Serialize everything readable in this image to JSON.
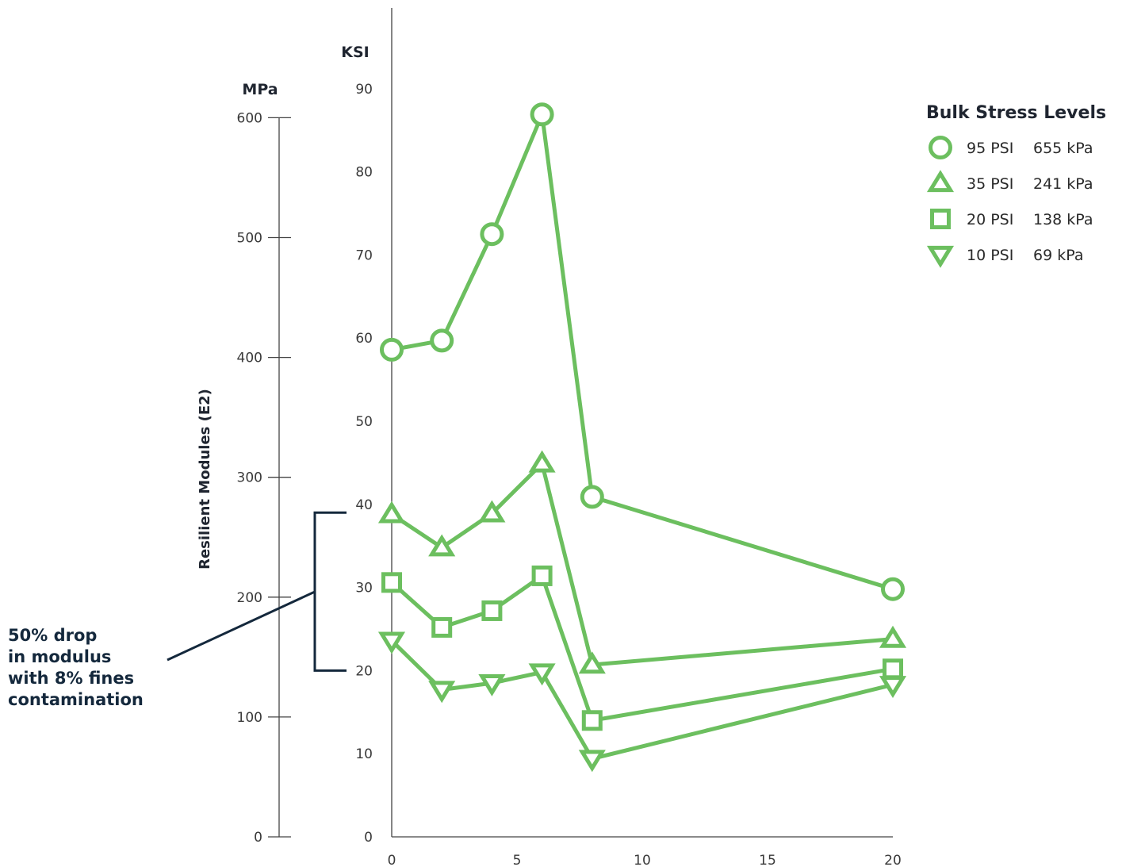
{
  "chart_data": {
    "type": "line",
    "axes": {
      "ksi": {
        "label": "KSI",
        "ticks": [
          0,
          10,
          20,
          30,
          40,
          50,
          60,
          70,
          80,
          90
        ],
        "range": [
          0,
          90
        ]
      },
      "mpa": {
        "label": "MPa",
        "ticks": [
          0,
          100,
          200,
          300,
          400,
          500,
          600
        ],
        "range": [
          0,
          600
        ]
      },
      "x": {
        "ticks": [
          0,
          5,
          10,
          15,
          20
        ],
        "range": [
          0,
          20
        ]
      },
      "ylabel": "Resilient Modules (E2)"
    },
    "legend": {
      "title": "Bulk Stress Levels",
      "position": "top-right"
    },
    "series": [
      {
        "name": "95 PSI",
        "name2": "655 kPa",
        "marker": "circle",
        "x": [
          0,
          2,
          4,
          6,
          8,
          20
        ],
        "y": [
          58.6,
          59.7,
          72.5,
          86.9,
          40.9,
          29.8
        ]
      },
      {
        "name": "35 PSI",
        "name2": "241 kPa",
        "marker": "triangle-up",
        "x": [
          0,
          2,
          4,
          6,
          8,
          20
        ],
        "y": [
          38.8,
          34.8,
          38.9,
          44.9,
          20.7,
          23.8
        ]
      },
      {
        "name": "20 PSI",
        "name2": "138 kPa",
        "marker": "square",
        "x": [
          0,
          2,
          4,
          6,
          8,
          20
        ],
        "y": [
          30.6,
          25.2,
          27.2,
          31.4,
          14.0,
          20.2
        ]
      },
      {
        "name": "10 PSI",
        "name2": "69 kPa",
        "marker": "triangle-down",
        "x": [
          0,
          2,
          4,
          6,
          8,
          20
        ],
        "y": [
          23.6,
          17.7,
          18.5,
          19.8,
          9.4,
          18.3
        ]
      }
    ],
    "annotation": {
      "lines": [
        "50% drop",
        "in modulus",
        "with 8% fines",
        "contamination"
      ],
      "range_ksi": [
        20,
        39
      ]
    },
    "colors": {
      "series": "#6cbf5f",
      "annotation": "#14283c",
      "axis": "#444444"
    }
  }
}
